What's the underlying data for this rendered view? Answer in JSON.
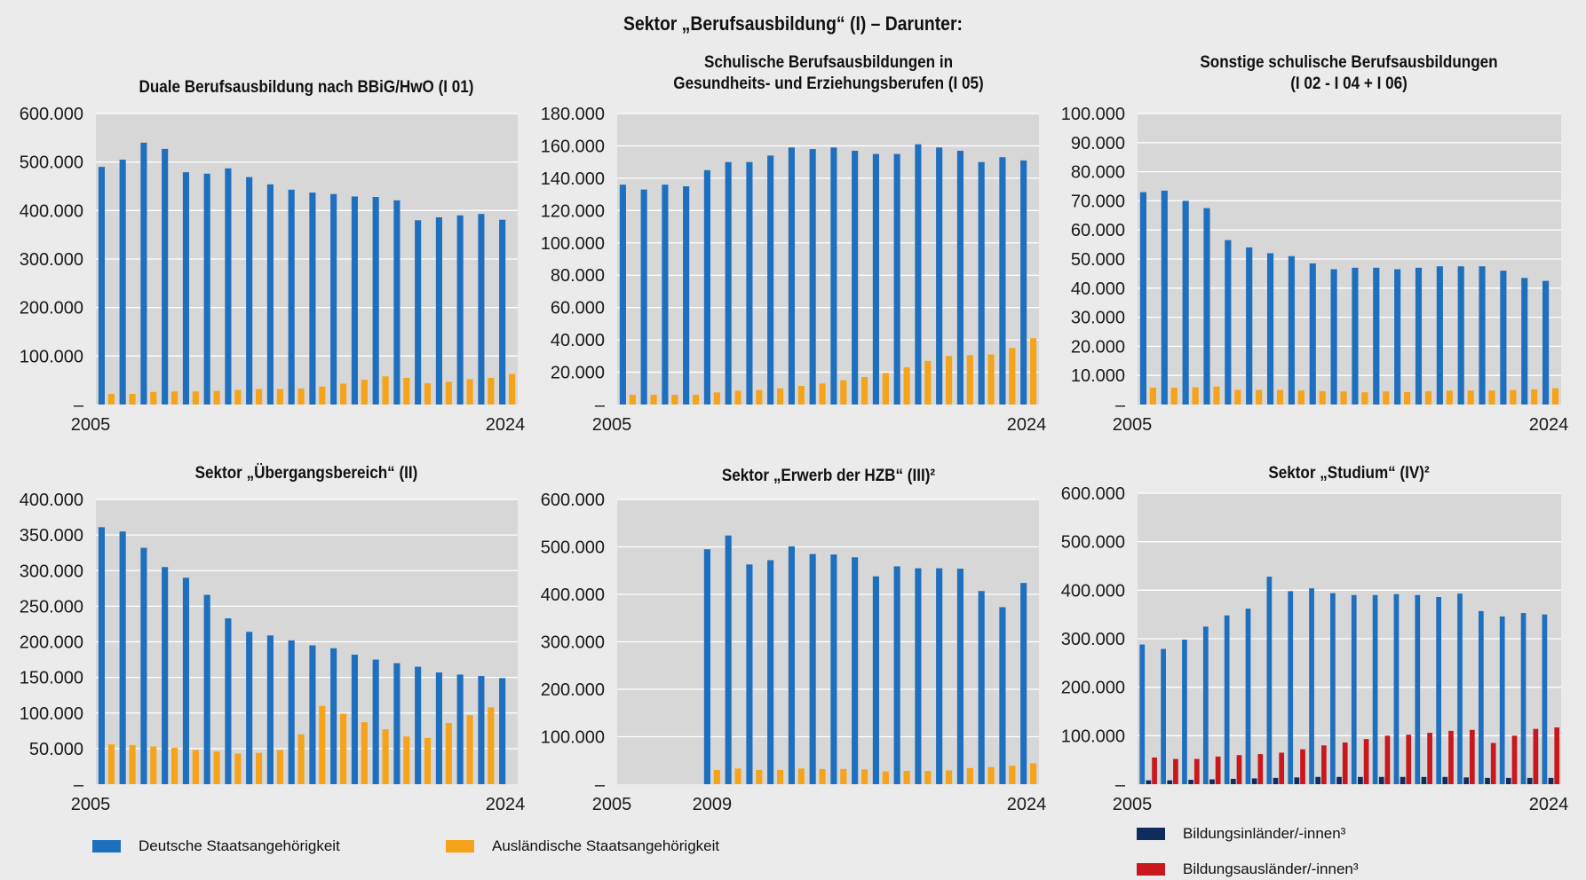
{
  "title": "Sektor „Berufsausbildung“ (I) – Darunter:",
  "colors": {
    "deutsche": "#1f6fbf",
    "auslaendische": "#f5a31a",
    "bildungsinlaender": "#0f2d5c",
    "bildungsauslaender": "#c8181e",
    "plot_bg": "#d7d7d7",
    "grid": "#ffffff"
  },
  "legend": {
    "deutsche": "Deutsche Staatsangehörigkeit",
    "auslaendische": "Ausländische Staatsangehörigkeit",
    "bildungsinlaender": "Bildungsinländer/-innen³",
    "bildungsauslaender": "Bildungsausländer/-innen³"
  },
  "chart_data": [
    {
      "type": "bar",
      "title_lines": [
        "Duale Berufsausbildung nach BBiG/HwO (I 01)"
      ],
      "x": [
        2005,
        2006,
        2007,
        2008,
        2009,
        2010,
        2011,
        2012,
        2013,
        2014,
        2015,
        2016,
        2017,
        2018,
        2019,
        2020,
        2021,
        2022,
        2023,
        2024
      ],
      "x_tick_labels": [
        "2005",
        "2024"
      ],
      "ylim": [
        0,
        600000
      ],
      "yticks": [
        "–",
        "100.000",
        "200.000",
        "300.000",
        "400.000",
        "500.000",
        "600.000"
      ],
      "series": [
        {
          "key": "deutsche",
          "values": [
            490000,
            505000,
            540000,
            527000,
            479000,
            476000,
            487000,
            469000,
            454000,
            443000,
            437000,
            434000,
            429000,
            428000,
            421000,
            380000,
            386000,
            390000,
            393000,
            381000
          ]
        },
        {
          "key": "auslaendische",
          "values": [
            22000,
            22000,
            26000,
            27000,
            27000,
            28000,
            30000,
            32000,
            32000,
            33000,
            37000,
            43000,
            51000,
            58000,
            55000,
            44000,
            47000,
            52000,
            55000,
            63000
          ]
        }
      ]
    },
    {
      "type": "bar",
      "title_lines": [
        "Schulische Berufsausbildungen in",
        "Gesundheits- und Erziehungsberufen (I 05)"
      ],
      "x": [
        2005,
        2006,
        2007,
        2008,
        2009,
        2010,
        2011,
        2012,
        2013,
        2014,
        2015,
        2016,
        2017,
        2018,
        2019,
        2020,
        2021,
        2022,
        2023,
        2024
      ],
      "x_tick_labels": [
        "2005",
        "2024"
      ],
      "ylim": [
        0,
        180000
      ],
      "yticks": [
        "–",
        "20.000",
        "40.000",
        "60.000",
        "80.000",
        "100.000",
        "120.000",
        "140.000",
        "160.000",
        "180.000"
      ],
      "series": [
        {
          "key": "deutsche",
          "values": [
            136000,
            133000,
            136000,
            135000,
            145000,
            150000,
            150000,
            154000,
            159000,
            158000,
            159000,
            157000,
            155000,
            155000,
            161000,
            159000,
            157000,
            150000,
            153000,
            151000
          ]
        },
        {
          "key": "auslaendische",
          "values": [
            6000,
            6000,
            6000,
            6000,
            7500,
            8500,
            9000,
            10000,
            11500,
            13000,
            15000,
            17000,
            19500,
            23000,
            27000,
            30000,
            30500,
            31000,
            35000,
            41000
          ]
        }
      ]
    },
    {
      "type": "bar",
      "title_lines": [
        "Sonstige schulische Berufsausbildungen",
        "(I 02 - I 04 + I 06)"
      ],
      "x": [
        2005,
        2006,
        2007,
        2008,
        2009,
        2010,
        2011,
        2012,
        2013,
        2014,
        2015,
        2016,
        2017,
        2018,
        2019,
        2020,
        2021,
        2022,
        2023,
        2024
      ],
      "x_tick_labels": [
        "2005",
        "2024"
      ],
      "ylim": [
        0,
        100000
      ],
      "yticks": [
        "–",
        "10.000",
        "20.000",
        "30.000",
        "40.000",
        "50.000",
        "60.000",
        "70.000",
        "80.000",
        "90.000",
        "100.000"
      ],
      "series": [
        {
          "key": "deutsche",
          "values": [
            73000,
            73500,
            70000,
            67500,
            56500,
            54000,
            52000,
            51000,
            48500,
            46500,
            47000,
            47000,
            46500,
            47000,
            47500,
            47500,
            47500,
            46000,
            43500,
            42500
          ]
        },
        {
          "key": "auslaendische",
          "values": [
            5800,
            5800,
            5900,
            6200,
            5000,
            5000,
            5000,
            4800,
            4600,
            4500,
            4200,
            4500,
            4300,
            4600,
            4800,
            4800,
            4800,
            5000,
            5200,
            5600
          ]
        }
      ]
    },
    {
      "type": "bar",
      "title_lines": [
        "Sektor „Übergangsbereich“ (II)"
      ],
      "x": [
        2005,
        2006,
        2007,
        2008,
        2009,
        2010,
        2011,
        2012,
        2013,
        2014,
        2015,
        2016,
        2017,
        2018,
        2019,
        2020,
        2021,
        2022,
        2023,
        2024
      ],
      "x_tick_labels": [
        "2005",
        "2024"
      ],
      "ylim": [
        0,
        400000
      ],
      "yticks": [
        "–",
        "50.000",
        "100.000",
        "150.000",
        "200.000",
        "250.000",
        "300.000",
        "350.000",
        "400.000"
      ],
      "series": [
        {
          "key": "deutsche",
          "values": [
            361000,
            355000,
            332000,
            305000,
            290000,
            266000,
            233000,
            214000,
            209000,
            202000,
            195000,
            191000,
            182000,
            175000,
            170000,
            165000,
            157000,
            154000,
            152000,
            149000
          ]
        },
        {
          "key": "auslaendische",
          "values": [
            56000,
            55000,
            53000,
            51000,
            48000,
            46000,
            43000,
            44000,
            48000,
            70000,
            110000,
            99000,
            87000,
            77000,
            67000,
            65000,
            86000,
            97000,
            108000,
            0
          ]
        }
      ]
    },
    {
      "type": "bar",
      "title_lines": [
        "Sektor „Erwerb der HZB“ (III)²"
      ],
      "x": [
        2005,
        2006,
        2007,
        2008,
        2009,
        2010,
        2011,
        2012,
        2013,
        2014,
        2015,
        2016,
        2017,
        2018,
        2019,
        2020,
        2021,
        2022,
        2023,
        2024
      ],
      "x_tick_labels": [
        "2005",
        "2009",
        "2024"
      ],
      "ylim": [
        0,
        600000
      ],
      "yticks": [
        "–",
        "100.000",
        "200.000",
        "300.000",
        "400.000",
        "500.000",
        "600.000"
      ],
      "series": [
        {
          "key": "deutsche",
          "values": [
            null,
            null,
            null,
            null,
            495000,
            524000,
            463000,
            472000,
            501000,
            485000,
            484000,
            478000,
            438000,
            459000,
            455000,
            455000,
            454000,
            407000,
            373000,
            424000
          ]
        },
        {
          "key": "auslaendische",
          "values": [
            null,
            null,
            null,
            null,
            30000,
            33000,
            30000,
            30000,
            33000,
            32000,
            32000,
            31000,
            27000,
            28000,
            28000,
            29000,
            34000,
            36000,
            39000,
            44000
          ]
        }
      ]
    },
    {
      "type": "bar",
      "title_lines": [
        "Sektor „Studium“ (IV)²"
      ],
      "x": [
        2005,
        2006,
        2007,
        2008,
        2009,
        2010,
        2011,
        2012,
        2013,
        2014,
        2015,
        2016,
        2017,
        2018,
        2019,
        2020,
        2021,
        2022,
        2023,
        2024
      ],
      "x_tick_labels": [
        "2005",
        "2024"
      ],
      "ylim": [
        0,
        600000
      ],
      "yticks": [
        "–",
        "100.000",
        "200.000",
        "300.000",
        "400.000",
        "500.000",
        "600.000"
      ],
      "series": [
        {
          "key": "deutsche",
          "values": [
            288000,
            279000,
            298000,
            325000,
            348000,
            362000,
            428000,
            398000,
            404000,
            394000,
            390000,
            390000,
            392000,
            390000,
            386000,
            393000,
            357000,
            346000,
            353000,
            350000
          ]
        },
        {
          "key": "bildungsinlaender",
          "values": [
            8000,
            8000,
            9000,
            10000,
            11000,
            12000,
            13000,
            14000,
            15000,
            15000,
            15000,
            15000,
            15000,
            15000,
            15000,
            14000,
            13000,
            13000,
            13000,
            13000
          ]
        },
        {
          "key": "bildungsauslaender",
          "values": [
            55000,
            52000,
            52000,
            57000,
            60000,
            62000,
            65000,
            72000,
            80000,
            86000,
            93000,
            100000,
            102000,
            106000,
            110000,
            112000,
            85000,
            100000,
            114000,
            117000
          ]
        }
      ]
    }
  ]
}
